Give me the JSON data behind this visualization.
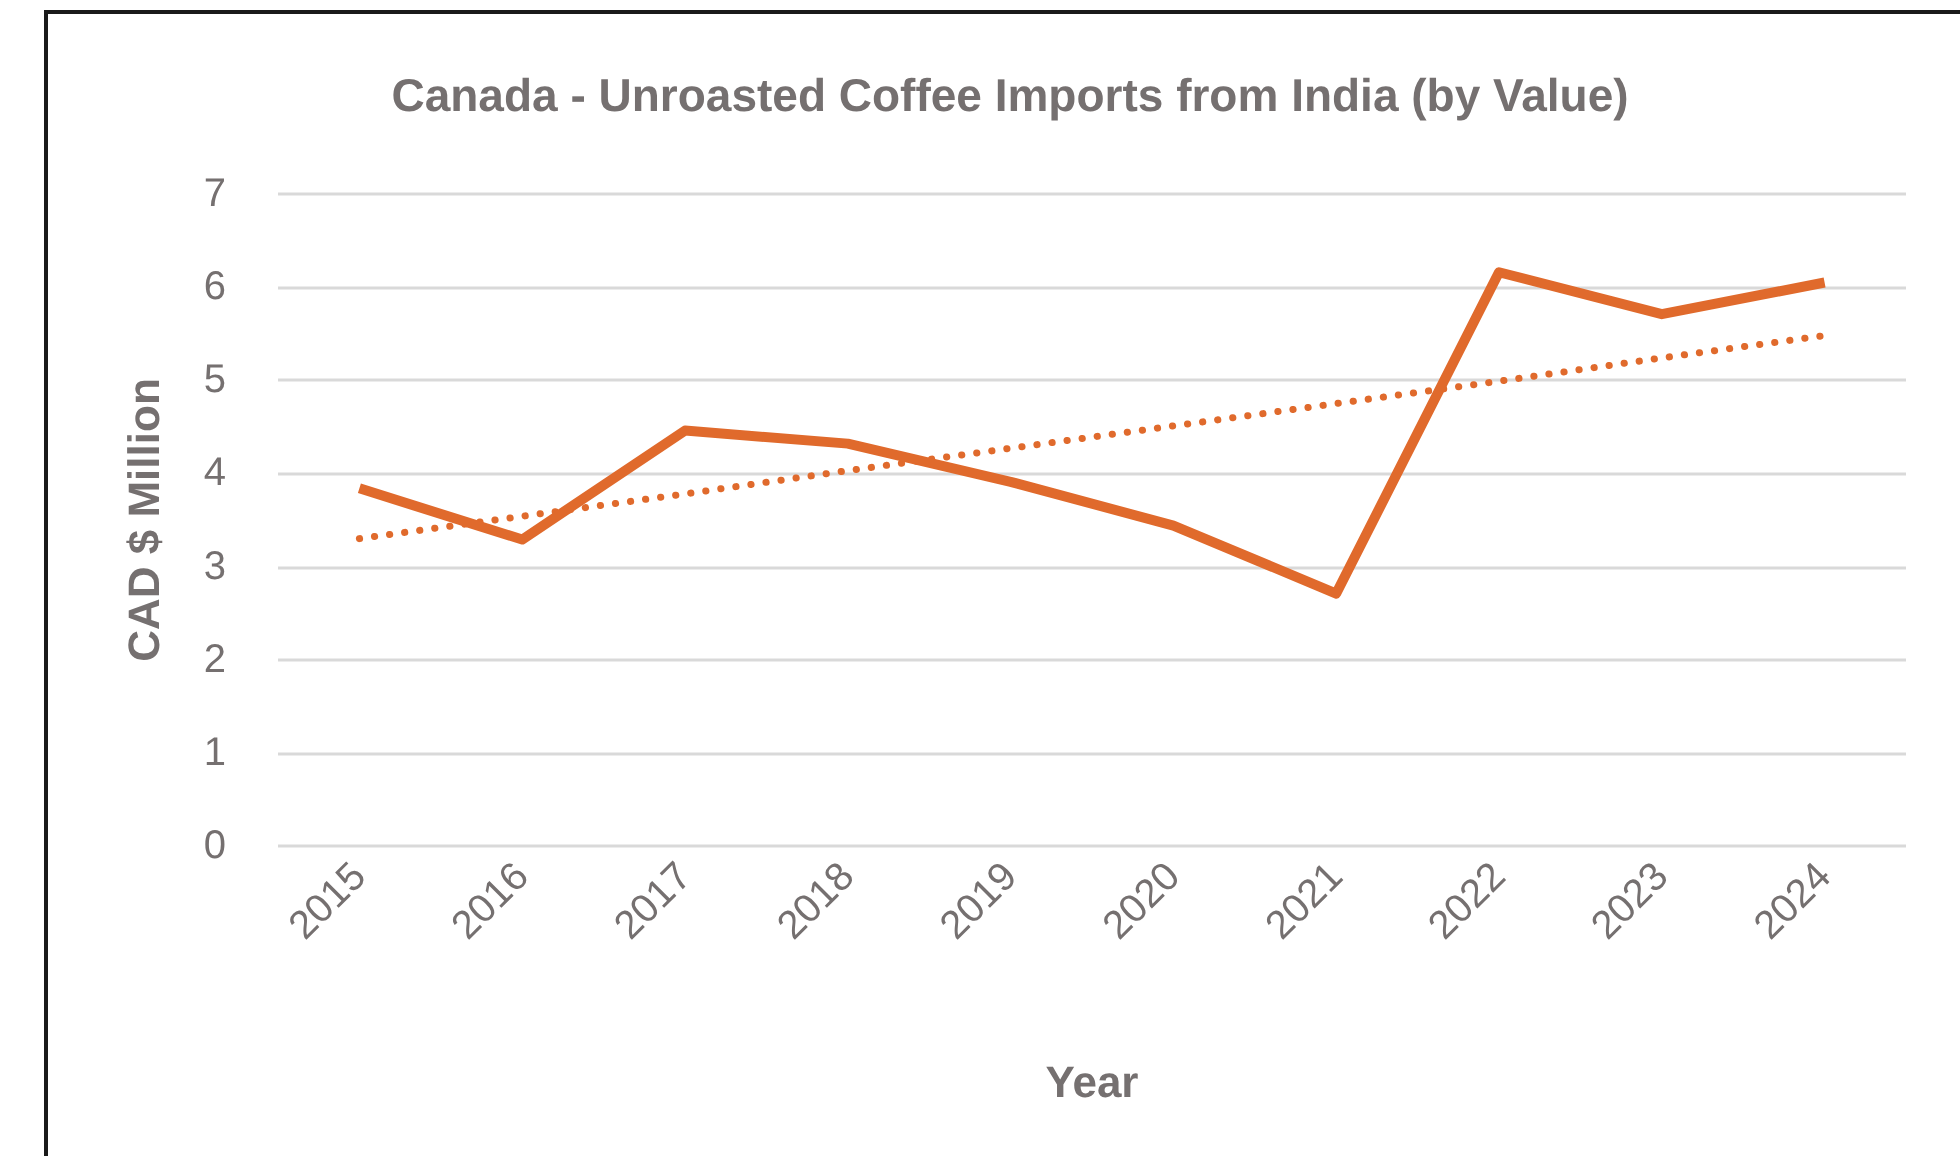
{
  "chart_data": {
    "type": "line",
    "title": "Canada - Unroasted Coffee Imports from India (by Value)",
    "xlabel": "Year",
    "ylabel": "CAD $ Million",
    "categories": [
      "2015",
      "2016",
      "2017",
      "2018",
      "2019",
      "2020",
      "2021",
      "2022",
      "2023",
      "2024"
    ],
    "series": [
      {
        "color": "#e06a2c",
        "values": [
          3.84,
          3.29,
          4.46,
          4.32,
          3.91,
          3.44,
          2.71,
          6.16,
          5.71,
          6.05
        ]
      },
      {
        "type": "line",
        "color": "#e06a2c",
        "line_style": "dotted",
        "values": [
          3.3,
          3.54,
          3.78,
          4.03,
          4.27,
          4.51,
          4.75,
          4.99,
          5.24,
          5.48
        ]
      }
    ],
    "ylim": [
      0,
      7
    ],
    "yticks": [
      0,
      1,
      2,
      3,
      4,
      5,
      6,
      7
    ],
    "grid": "y",
    "marker": "none",
    "line_style": "solid"
  }
}
